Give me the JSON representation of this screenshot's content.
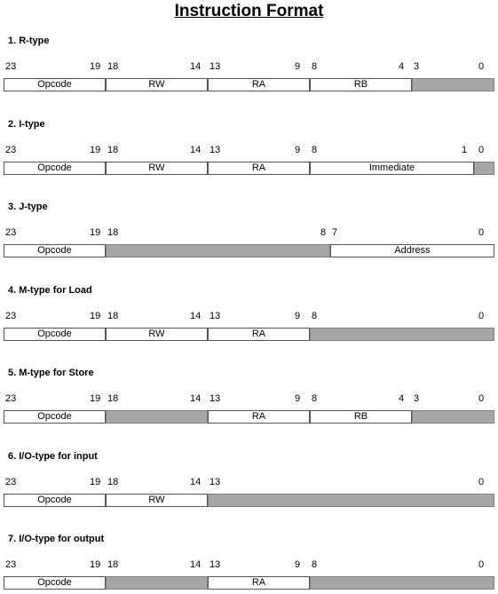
{
  "title": "Instruction Format",
  "shade_color": "#a6a6a6",
  "formats": [
    {
      "heading": "1. R-type",
      "bits": [
        "23",
        "19",
        "18",
        "14",
        "13",
        "9",
        "8",
        "4",
        "3",
        "0"
      ],
      "fields": [
        {
          "label": "Opcode",
          "hi": 23,
          "lo": 19,
          "shaded": false
        },
        {
          "label": "RW",
          "hi": 18,
          "lo": 14,
          "shaded": false
        },
        {
          "label": "RA",
          "hi": 13,
          "lo": 9,
          "shaded": false
        },
        {
          "label": "RB",
          "hi": 8,
          "lo": 4,
          "shaded": false
        },
        {
          "label": "",
          "hi": 3,
          "lo": 0,
          "shaded": true
        }
      ]
    },
    {
      "heading": "2. I-type",
      "bits": [
        "23",
        "19",
        "18",
        "14",
        "13",
        "9",
        "8",
        "1",
        "0"
      ],
      "fields": [
        {
          "label": "Opcode",
          "hi": 23,
          "lo": 19,
          "shaded": false
        },
        {
          "label": "RW",
          "hi": 18,
          "lo": 14,
          "shaded": false
        },
        {
          "label": "RA",
          "hi": 13,
          "lo": 9,
          "shaded": false
        },
        {
          "label": "Immediate",
          "hi": 8,
          "lo": 1,
          "shaded": false
        },
        {
          "label": "",
          "hi": 0,
          "lo": 0,
          "shaded": true
        }
      ]
    },
    {
      "heading": "3. J-type",
      "bits": [
        "23",
        "19",
        "18",
        "8",
        "7",
        "0"
      ],
      "fields": [
        {
          "label": "Opcode",
          "hi": 23,
          "lo": 19,
          "shaded": false
        },
        {
          "label": "",
          "hi": 18,
          "lo": 8,
          "shaded": true
        },
        {
          "label": "Address",
          "hi": 7,
          "lo": 0,
          "shaded": false
        }
      ]
    },
    {
      "heading": "4. M-type for Load",
      "bits": [
        "23",
        "19",
        "18",
        "14",
        "13",
        "9",
        "8",
        "0"
      ],
      "fields": [
        {
          "label": "Opcode",
          "hi": 23,
          "lo": 19,
          "shaded": false
        },
        {
          "label": "RW",
          "hi": 18,
          "lo": 14,
          "shaded": false
        },
        {
          "label": "RA",
          "hi": 13,
          "lo": 9,
          "shaded": false
        },
        {
          "label": "",
          "hi": 8,
          "lo": 0,
          "shaded": true
        }
      ]
    },
    {
      "heading": "5. M-type for Store",
      "bits": [
        "23",
        "19",
        "18",
        "14",
        "13",
        "9",
        "8",
        "4",
        "3",
        "0"
      ],
      "fields": [
        {
          "label": "Opcode",
          "hi": 23,
          "lo": 19,
          "shaded": false
        },
        {
          "label": "",
          "hi": 18,
          "lo": 14,
          "shaded": true
        },
        {
          "label": "RA",
          "hi": 13,
          "lo": 9,
          "shaded": false
        },
        {
          "label": "RB",
          "hi": 8,
          "lo": 4,
          "shaded": false
        },
        {
          "label": "",
          "hi": 3,
          "lo": 0,
          "shaded": true
        }
      ]
    },
    {
      "heading": "6. I/O-type for input",
      "bits": [
        "23",
        "19",
        "18",
        "14",
        "13",
        "0"
      ],
      "fields": [
        {
          "label": "Opcode",
          "hi": 23,
          "lo": 19,
          "shaded": false
        },
        {
          "label": "RW",
          "hi": 18,
          "lo": 14,
          "shaded": false
        },
        {
          "label": "",
          "hi": 13,
          "lo": 0,
          "shaded": true
        }
      ]
    },
    {
      "heading": "7. I/O-type for output",
      "bits": [
        "23",
        "19",
        "18",
        "14",
        "13",
        "9",
        "8",
        "0"
      ],
      "fields": [
        {
          "label": "Opcode",
          "hi": 23,
          "lo": 19,
          "shaded": false
        },
        {
          "label": "",
          "hi": 18,
          "lo": 14,
          "shaded": true
        },
        {
          "label": "RA",
          "hi": 13,
          "lo": 9,
          "shaded": false
        },
        {
          "label": "",
          "hi": 8,
          "lo": 0,
          "shaded": true
        }
      ]
    }
  ]
}
